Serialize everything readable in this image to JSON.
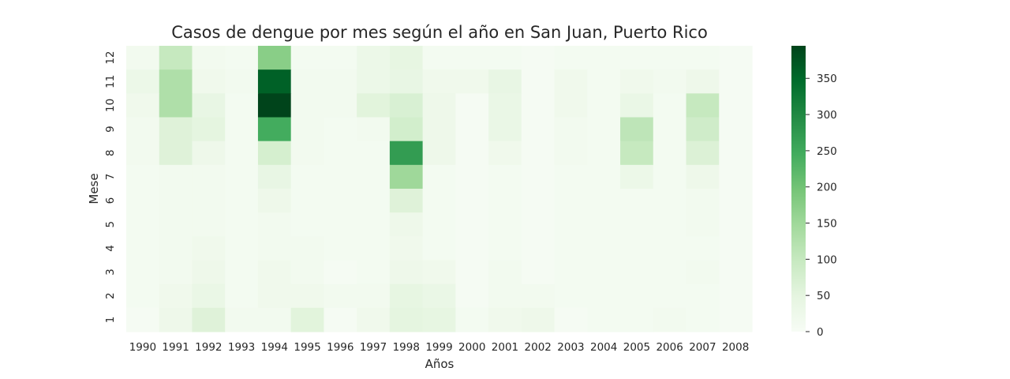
{
  "chart_data": {
    "type": "heatmap",
    "title": "Casos de dengue por mes según el año en San Juan, Puerto Rico",
    "xlabel": "Años",
    "ylabel": "Mese",
    "x_categories": [
      "1990",
      "1991",
      "1992",
      "1993",
      "1994",
      "1995",
      "1996",
      "1997",
      "1998",
      "1999",
      "2000",
      "2001",
      "2002",
      "2003",
      "2004",
      "2005",
      "2006",
      "2007",
      "2008"
    ],
    "y_categories": [
      "12",
      "11",
      "10",
      "9",
      "8",
      "7",
      "6",
      "5",
      "4",
      "3",
      "2",
      "1"
    ],
    "values": [
      [
        15,
        100,
        15,
        10,
        175,
        10,
        10,
        30,
        45,
        10,
        10,
        10,
        5,
        10,
        10,
        10,
        10,
        10,
        5
      ],
      [
        30,
        130,
        20,
        15,
        360,
        15,
        15,
        30,
        40,
        20,
        20,
        40,
        5,
        20,
        10,
        20,
        15,
        25,
        5
      ],
      [
        20,
        130,
        40,
        10,
        395,
        15,
        15,
        55,
        70,
        25,
        5,
        35,
        5,
        20,
        10,
        35,
        10,
        100,
        5
      ],
      [
        15,
        60,
        50,
        10,
        245,
        15,
        10,
        15,
        80,
        25,
        5,
        35,
        5,
        15,
        10,
        110,
        10,
        85,
        5
      ],
      [
        15,
        60,
        25,
        10,
        75,
        15,
        10,
        10,
        270,
        25,
        5,
        20,
        5,
        15,
        10,
        100,
        10,
        65,
        5
      ],
      [
        10,
        15,
        15,
        10,
        40,
        10,
        10,
        10,
        150,
        10,
        5,
        10,
        5,
        10,
        10,
        30,
        10,
        25,
        5
      ],
      [
        10,
        15,
        15,
        10,
        25,
        10,
        10,
        10,
        60,
        10,
        5,
        10,
        5,
        10,
        10,
        10,
        10,
        15,
        5
      ],
      [
        10,
        15,
        15,
        10,
        15,
        10,
        10,
        10,
        25,
        10,
        5,
        10,
        5,
        10,
        10,
        10,
        10,
        15,
        5
      ],
      [
        10,
        15,
        20,
        10,
        15,
        15,
        10,
        10,
        20,
        10,
        5,
        10,
        5,
        10,
        10,
        10,
        10,
        10,
        5
      ],
      [
        10,
        15,
        25,
        10,
        20,
        15,
        5,
        10,
        25,
        20,
        5,
        15,
        5,
        10,
        10,
        10,
        10,
        15,
        5
      ],
      [
        10,
        20,
        35,
        10,
        20,
        20,
        15,
        15,
        45,
        35,
        5,
        15,
        15,
        10,
        10,
        10,
        10,
        10,
        5
      ],
      [
        5,
        25,
        60,
        15,
        15,
        55,
        5,
        20,
        50,
        45,
        10,
        20,
        25,
        5,
        10,
        10,
        15,
        10,
        5
      ]
    ],
    "colorbar": {
      "min": 0,
      "max": 395,
      "ticks": [
        0,
        50,
        100,
        150,
        200,
        250,
        300,
        350
      ],
      "colormap": "Greens",
      "stops": [
        "#f7fcf5",
        "#e5f5e0",
        "#c7e9c0",
        "#a1d99b",
        "#74c476",
        "#41ab5d",
        "#238b45",
        "#006d2c",
        "#00441b"
      ]
    }
  }
}
